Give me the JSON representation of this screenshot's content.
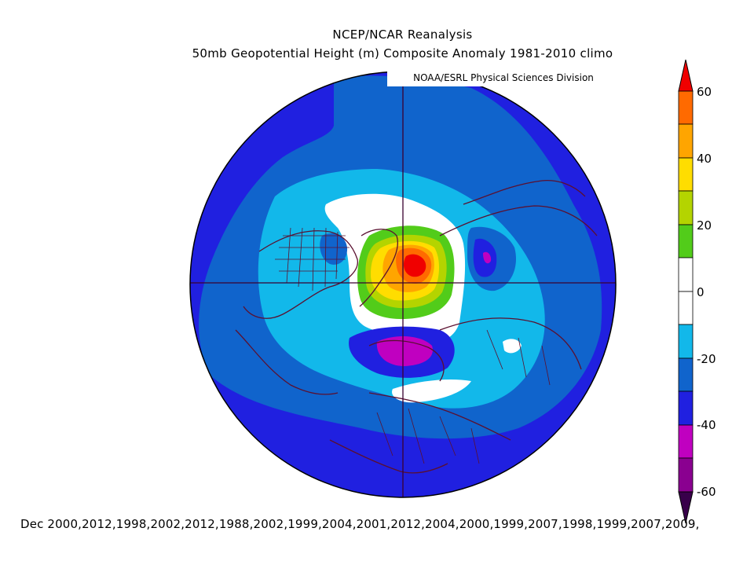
{
  "title": {
    "line1": "NCEP/NCAR Reanalysis",
    "line2": "50mb Geopotential Height (m) Composite Anomaly 1981-2010 climo",
    "credit": "NOAA/ESRL Physical Sciences Division"
  },
  "colorbar": {
    "labels": [
      "60",
      "40",
      "20",
      "0",
      "-20",
      "-40",
      "-60"
    ],
    "levels": [
      {
        "range": ">60",
        "color": "#f00000"
      },
      {
        "range": "50 to 60",
        "color": "#ff6a00"
      },
      {
        "range": "40 to 50",
        "color": "#ffa500"
      },
      {
        "range": "30 to 40",
        "color": "#ffdd00"
      },
      {
        "range": "20 to 30",
        "color": "#b4d400"
      },
      {
        "range": "10 to 20",
        "color": "#52cc1a"
      },
      {
        "range": "0 to 10",
        "color": "#ffffff"
      },
      {
        "range": "-10 to 0",
        "color": "#ffffff"
      },
      {
        "range": "-20 to -10",
        "color": "#12b8ea"
      },
      {
        "range": "-30 to -20",
        "color": "#1064cc"
      },
      {
        "range": "-40 to -30",
        "color": "#2020e0"
      },
      {
        "range": "-50 to -40",
        "color": "#c000c0"
      },
      {
        "range": "-60 to -50",
        "color": "#8a0090"
      },
      {
        "range": "<-60",
        "color": "#38004a"
      }
    ]
  },
  "footer": {
    "text": "Dec 2000,2012,1998,2002,2012,1988,2002,1999,2004,2001,2012,2004,2000,1999,2007,1998,1999,2007,2009,"
  }
}
